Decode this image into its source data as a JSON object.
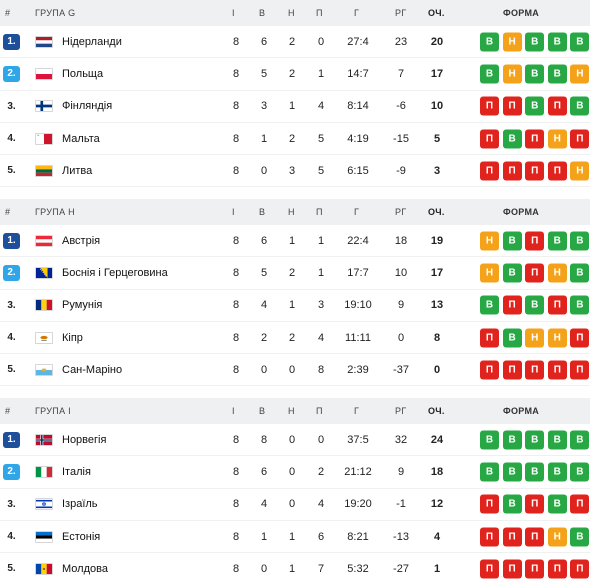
{
  "headers": {
    "hash": "#",
    "played": "І",
    "won": "В",
    "drawn": "Н",
    "lost": "П",
    "goals": "Г",
    "goal_diff": "РГ",
    "points": "ОЧ.",
    "form": "ФОРМА"
  },
  "form_labels": {
    "W": "В",
    "D": "Н",
    "L": "П"
  },
  "colors": {
    "win": "#27a844",
    "draw": "#f4a21a",
    "loss": "#e0231c",
    "qualify_1": "#1e4f9a",
    "qualify_2": "#2fa6e8",
    "header_bg": "#eef0f2"
  },
  "groups": [
    {
      "name": "ГРУПА G",
      "rows": [
        {
          "pos": "1.",
          "flag": "netherlands-flag",
          "team": "Нідерланди",
          "p": "8",
          "w": "6",
          "d": "2",
          "l": "0",
          "g": "27:4",
          "gd": "23",
          "pts": "20",
          "form": [
            "W",
            "D",
            "W",
            "W",
            "W"
          ]
        },
        {
          "pos": "2.",
          "flag": "poland-flag",
          "team": "Польща",
          "p": "8",
          "w": "5",
          "d": "2",
          "l": "1",
          "g": "14:7",
          "gd": "7",
          "pts": "17",
          "form": [
            "W",
            "D",
            "W",
            "W",
            "D"
          ]
        },
        {
          "pos": "3.",
          "flag": "finland-flag",
          "team": "Фінляндія",
          "p": "8",
          "w": "3",
          "d": "1",
          "l": "4",
          "g": "8:14",
          "gd": "-6",
          "pts": "10",
          "form": [
            "L",
            "L",
            "W",
            "L",
            "W"
          ]
        },
        {
          "pos": "4.",
          "flag": "malta-flag",
          "team": "Мальта",
          "p": "8",
          "w": "1",
          "d": "2",
          "l": "5",
          "g": "4:19",
          "gd": "-15",
          "pts": "5",
          "form": [
            "L",
            "W",
            "L",
            "D",
            "L"
          ]
        },
        {
          "pos": "5.",
          "flag": "lithuania-flag",
          "team": "Литва",
          "p": "8",
          "w": "0",
          "d": "3",
          "l": "5",
          "g": "6:15",
          "gd": "-9",
          "pts": "3",
          "form": [
            "L",
            "L",
            "L",
            "L",
            "D"
          ]
        }
      ]
    },
    {
      "name": "ГРУПА H",
      "rows": [
        {
          "pos": "1.",
          "flag": "austria-flag",
          "team": "Австрія",
          "p": "8",
          "w": "6",
          "d": "1",
          "l": "1",
          "g": "22:4",
          "gd": "18",
          "pts": "19",
          "form": [
            "D",
            "W",
            "L",
            "W",
            "W"
          ]
        },
        {
          "pos": "2.",
          "flag": "bosnia-flag",
          "team": "Боснія і Герцеговина",
          "p": "8",
          "w": "5",
          "d": "2",
          "l": "1",
          "g": "17:7",
          "gd": "10",
          "pts": "17",
          "form": [
            "D",
            "W",
            "L",
            "D",
            "W"
          ]
        },
        {
          "pos": "3.",
          "flag": "romania-flag",
          "team": "Румунія",
          "p": "8",
          "w": "4",
          "d": "1",
          "l": "3",
          "g": "19:10",
          "gd": "9",
          "pts": "13",
          "form": [
            "W",
            "L",
            "W",
            "L",
            "W"
          ]
        },
        {
          "pos": "4.",
          "flag": "cyprus-flag",
          "team": "Кіпр",
          "p": "8",
          "w": "2",
          "d": "2",
          "l": "4",
          "g": "11:11",
          "gd": "0",
          "pts": "8",
          "form": [
            "L",
            "W",
            "D",
            "D",
            "L"
          ]
        },
        {
          "pos": "5.",
          "flag": "san-marino-flag",
          "team": "Сан-Маріно",
          "p": "8",
          "w": "0",
          "d": "0",
          "l": "8",
          "g": "2:39",
          "gd": "-37",
          "pts": "0",
          "form": [
            "L",
            "L",
            "L",
            "L",
            "L"
          ]
        }
      ]
    },
    {
      "name": "ГРУПА I",
      "rows": [
        {
          "pos": "1.",
          "flag": "norway-flag",
          "team": "Норвегія",
          "p": "8",
          "w": "8",
          "d": "0",
          "l": "0",
          "g": "37:5",
          "gd": "32",
          "pts": "24",
          "form": [
            "W",
            "W",
            "W",
            "W",
            "W"
          ]
        },
        {
          "pos": "2.",
          "flag": "italy-flag",
          "team": "Італія",
          "p": "8",
          "w": "6",
          "d": "0",
          "l": "2",
          "g": "21:12",
          "gd": "9",
          "pts": "18",
          "form": [
            "W",
            "W",
            "W",
            "W",
            "W"
          ]
        },
        {
          "pos": "3.",
          "flag": "israel-flag",
          "team": "Ізраїль",
          "p": "8",
          "w": "4",
          "d": "0",
          "l": "4",
          "g": "19:20",
          "gd": "-1",
          "pts": "12",
          "form": [
            "L",
            "W",
            "L",
            "W",
            "L"
          ]
        },
        {
          "pos": "4.",
          "flag": "estonia-flag",
          "team": "Естонія",
          "p": "8",
          "w": "1",
          "d": "1",
          "l": "6",
          "g": "8:21",
          "gd": "-13",
          "pts": "4",
          "form": [
            "L",
            "L",
            "L",
            "D",
            "W"
          ]
        },
        {
          "pos": "5.",
          "flag": "moldova-flag",
          "team": "Молдова",
          "p": "8",
          "w": "0",
          "d": "1",
          "l": "7",
          "g": "5:32",
          "gd": "-27",
          "pts": "1",
          "form": [
            "L",
            "L",
            "L",
            "L",
            "L"
          ]
        }
      ]
    }
  ]
}
